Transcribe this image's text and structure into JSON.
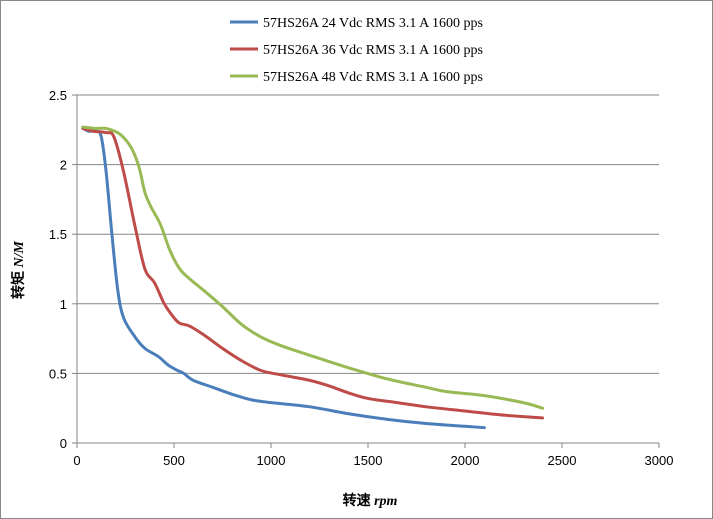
{
  "chart_data": {
    "type": "line",
    "xlabel": "转速 rpm",
    "ylabel": "转矩 N/M",
    "xlim": [
      0,
      3000
    ],
    "ylim": [
      0,
      2.5
    ],
    "x_ticks": [
      0,
      500,
      1000,
      1500,
      2000,
      2500,
      3000
    ],
    "y_ticks": [
      0,
      0.5,
      1,
      1.5,
      2,
      2.5
    ],
    "y_tick_labels": [
      "0",
      "0.5",
      "1",
      "1.5",
      "2",
      "2.5"
    ],
    "grid": "horizontal",
    "legend_position": "top",
    "series": [
      {
        "name": "57HS26A 24 Vdc  RMS 3.1 A  1600 pps",
        "color": "#4a7ebb",
        "points": [
          [
            30,
            2.26
          ],
          [
            60,
            2.24
          ],
          [
            100,
            2.24
          ],
          [
            125,
            2.2
          ],
          [
            150,
            1.95
          ],
          [
            180,
            1.5
          ],
          [
            210,
            1.1
          ],
          [
            240,
            0.9
          ],
          [
            300,
            0.76
          ],
          [
            350,
            0.68
          ],
          [
            420,
            0.62
          ],
          [
            470,
            0.56
          ],
          [
            520,
            0.52
          ],
          [
            550,
            0.5
          ],
          [
            600,
            0.45
          ],
          [
            700,
            0.4
          ],
          [
            800,
            0.35
          ],
          [
            900,
            0.31
          ],
          [
            1000,
            0.29
          ],
          [
            1200,
            0.26
          ],
          [
            1400,
            0.21
          ],
          [
            1600,
            0.17
          ],
          [
            1800,
            0.14
          ],
          [
            2000,
            0.12
          ],
          [
            2100,
            0.11
          ]
        ]
      },
      {
        "name": "57HS26A 36 Vdc  RMS 3.1 A  1600 pps",
        "color": "#be4b48",
        "points": [
          [
            30,
            2.26
          ],
          [
            80,
            2.24
          ],
          [
            150,
            2.23
          ],
          [
            190,
            2.2
          ],
          [
            240,
            1.95
          ],
          [
            300,
            1.55
          ],
          [
            350,
            1.25
          ],
          [
            400,
            1.15
          ],
          [
            450,
            1.0
          ],
          [
            500,
            0.9
          ],
          [
            530,
            0.86
          ],
          [
            580,
            0.84
          ],
          [
            650,
            0.78
          ],
          [
            750,
            0.68
          ],
          [
            850,
            0.59
          ],
          [
            950,
            0.52
          ],
          [
            1050,
            0.49
          ],
          [
            1200,
            0.45
          ],
          [
            1300,
            0.41
          ],
          [
            1400,
            0.36
          ],
          [
            1500,
            0.32
          ],
          [
            1650,
            0.29
          ],
          [
            1800,
            0.26
          ],
          [
            2000,
            0.23
          ],
          [
            2200,
            0.2
          ],
          [
            2400,
            0.18
          ]
        ]
      },
      {
        "name": "57HS26A 48 Vdc  RMS 3.1 A  1600 pps",
        "color": "#98b954",
        "points": [
          [
            30,
            2.27
          ],
          [
            100,
            2.26
          ],
          [
            150,
            2.26
          ],
          [
            220,
            2.22
          ],
          [
            280,
            2.12
          ],
          [
            320,
            1.98
          ],
          [
            350,
            1.8
          ],
          [
            380,
            1.7
          ],
          [
            430,
            1.57
          ],
          [
            480,
            1.38
          ],
          [
            530,
            1.25
          ],
          [
            580,
            1.18
          ],
          [
            650,
            1.1
          ],
          [
            750,
            0.98
          ],
          [
            850,
            0.85
          ],
          [
            950,
            0.76
          ],
          [
            1050,
            0.7
          ],
          [
            1200,
            0.63
          ],
          [
            1400,
            0.54
          ],
          [
            1600,
            0.46
          ],
          [
            1800,
            0.4
          ],
          [
            1900,
            0.37
          ],
          [
            2100,
            0.34
          ],
          [
            2300,
            0.29
          ],
          [
            2400,
            0.25
          ]
        ]
      }
    ]
  }
}
